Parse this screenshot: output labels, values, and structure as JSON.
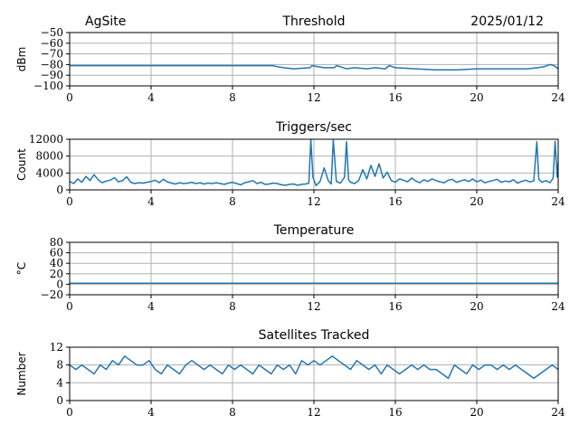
{
  "header": {
    "site": "AgSite",
    "date": "2025/01/12"
  },
  "chart_data": [
    {
      "type": "line",
      "title": "Threshold",
      "ylabel": "dBm",
      "xlim": [
        0,
        24
      ],
      "ylim": [
        -100,
        -50
      ],
      "xticks": [
        0,
        4,
        8,
        12,
        16,
        20,
        24
      ],
      "yticks": [
        -100,
        -90,
        -80,
        -70,
        -60,
        -50
      ],
      "ytick_labels": [
        "−100",
        "−90",
        "−80",
        "−70",
        "−60",
        "−50"
      ],
      "color": "#1f77b4",
      "x": [
        0,
        2,
        4,
        6,
        8,
        9,
        10,
        10.2,
        10.5,
        11,
        11.8,
        11.9,
        12.2,
        12.5,
        13,
        13.1,
        13.3,
        13.6,
        14,
        14.6,
        15,
        15.5,
        15.7,
        16,
        17,
        18,
        19,
        20,
        21,
        22,
        22.5,
        23,
        23.3,
        23.6,
        23.8,
        24
      ],
      "y": [
        -81,
        -81,
        -81,
        -81,
        -81,
        -81,
        -81,
        -82,
        -83,
        -84,
        -83,
        -81,
        -82,
        -83,
        -83,
        -81,
        -82,
        -84,
        -83,
        -84,
        -83,
        -84,
        -81,
        -83,
        -84,
        -85,
        -85,
        -84,
        -84,
        -84,
        -84,
        -83,
        -82,
        -80,
        -81,
        -84
      ]
    },
    {
      "type": "line",
      "title": "Triggers/sec",
      "ylabel": "Count",
      "xlim": [
        0,
        24
      ],
      "ylim": [
        0,
        12000
      ],
      "xticks": [
        0,
        4,
        8,
        12,
        16,
        20,
        24
      ],
      "yticks": [
        0,
        4000,
        8000,
        12000
      ],
      "ytick_labels": [
        "0",
        "4000",
        "8000",
        "12000"
      ],
      "color": "#1f77b4",
      "x": [
        0,
        0.2,
        0.4,
        0.6,
        0.8,
        1.0,
        1.2,
        1.4,
        1.6,
        1.8,
        2.0,
        2.2,
        2.4,
        2.6,
        2.8,
        3.0,
        3.2,
        3.4,
        3.6,
        3.8,
        4.0,
        4.2,
        4.4,
        4.6,
        4.8,
        5.0,
        5.2,
        5.4,
        5.6,
        5.8,
        6.0,
        6.2,
        6.4,
        6.6,
        6.8,
        7.0,
        7.2,
        7.4,
        7.6,
        7.8,
        8.0,
        8.2,
        8.4,
        8.6,
        8.8,
        9.0,
        9.2,
        9.4,
        9.6,
        9.8,
        10.0,
        10.2,
        10.4,
        10.6,
        10.8,
        11.0,
        11.2,
        11.4,
        11.6,
        11.75,
        11.85,
        11.95,
        12.1,
        12.3,
        12.5,
        12.7,
        12.85,
        12.95,
        13.1,
        13.3,
        13.5,
        13.6,
        13.7,
        13.8,
        14.0,
        14.2,
        14.4,
        14.6,
        14.8,
        15.0,
        15.2,
        15.4,
        15.6,
        15.8,
        16.0,
        16.2,
        16.4,
        16.6,
        16.8,
        17.0,
        17.2,
        17.4,
        17.6,
        17.8,
        18.0,
        18.2,
        18.4,
        18.6,
        18.8,
        19.0,
        19.2,
        19.4,
        19.6,
        19.8,
        20.0,
        20.2,
        20.4,
        20.6,
        20.8,
        21.0,
        21.2,
        21.4,
        21.6,
        21.8,
        22.0,
        22.2,
        22.4,
        22.6,
        22.8,
        22.95,
        23.05,
        23.2,
        23.4,
        23.6,
        23.75,
        23.85,
        23.95,
        24.0
      ],
      "y": [
        2000,
        1500,
        2600,
        1800,
        3200,
        2200,
        3600,
        2400,
        1700,
        2100,
        2300,
        2900,
        1900,
        2200,
        3100,
        1800,
        1500,
        1700,
        1600,
        1800,
        2000,
        2300,
        1700,
        2500,
        1900,
        1600,
        1400,
        1700,
        1500,
        1600,
        1800,
        1500,
        1700,
        1400,
        1600,
        1500,
        1700,
        1500,
        1300,
        1600,
        1800,
        1500,
        1200,
        1700,
        1900,
        2200,
        1500,
        1800,
        1300,
        1400,
        1600,
        1500,
        1200,
        1100,
        1300,
        1400,
        1100,
        1300,
        1400,
        1600,
        12000,
        3000,
        1000,
        2000,
        5200,
        2200,
        1400,
        11800,
        2000,
        1600,
        3000,
        11400,
        2400,
        1800,
        1500,
        2200,
        4800,
        2600,
        5800,
        3200,
        6200,
        2800,
        4200,
        2200,
        1800,
        2600,
        2300,
        1900,
        2800,
        2100,
        1700,
        2400,
        2000,
        2600,
        2200,
        1900,
        1700,
        2300,
        2500,
        1800,
        2100,
        2400,
        2000,
        2600,
        1900,
        2300,
        1700,
        2000,
        2200,
        2500,
        1800,
        2100,
        1900,
        2400,
        1600,
        2000,
        2300,
        1900,
        2100,
        11400,
        2500,
        1800,
        2200,
        1700,
        2800,
        11500,
        3000,
        6500
      ]
    },
    {
      "type": "line",
      "title": "Temperature",
      "ylabel": "°C",
      "xlim": [
        0,
        24
      ],
      "ylim": [
        -20,
        80
      ],
      "xticks": [
        0,
        4,
        8,
        12,
        16,
        20,
        24
      ],
      "yticks": [
        -20,
        0,
        20,
        40,
        60,
        80
      ],
      "ytick_labels": [
        "−20",
        "0",
        "20",
        "40",
        "60",
        "80"
      ],
      "color": "#1f77b4",
      "x": [
        0,
        24
      ],
      "y": [
        2,
        2
      ]
    },
    {
      "type": "line",
      "title": "Satellites Tracked",
      "ylabel": "Number",
      "xlim": [
        0,
        24
      ],
      "ylim": [
        0,
        12
      ],
      "xticks": [
        0,
        4,
        8,
        12,
        16,
        20,
        24
      ],
      "yticks": [
        0,
        4,
        8,
        12
      ],
      "ytick_labels": [
        "0",
        "4",
        "8",
        "12"
      ],
      "color": "#1f77b4",
      "x": [
        0,
        0.3,
        0.6,
        0.9,
        1.2,
        1.5,
        1.8,
        2.1,
        2.4,
        2.7,
        3.0,
        3.3,
        3.6,
        3.9,
        4.2,
        4.5,
        4.8,
        5.1,
        5.4,
        5.7,
        6.0,
        6.3,
        6.6,
        6.9,
        7.2,
        7.5,
        7.8,
        8.1,
        8.4,
        8.7,
        9.0,
        9.3,
        9.6,
        9.9,
        10.2,
        10.5,
        10.8,
        11.1,
        11.4,
        11.7,
        12.0,
        12.3,
        12.6,
        12.9,
        13.2,
        13.5,
        13.8,
        14.1,
        14.4,
        14.7,
        15.0,
        15.3,
        15.6,
        15.9,
        16.2,
        16.5,
        16.8,
        17.1,
        17.4,
        17.7,
        18.0,
        18.3,
        18.6,
        18.9,
        19.2,
        19.5,
        19.8,
        20.1,
        20.4,
        20.7,
        21.0,
        21.3,
        21.6,
        21.9,
        22.2,
        22.5,
        22.8,
        23.1,
        23.4,
        23.7,
        24.0
      ],
      "y": [
        8,
        7,
        8,
        7,
        6,
        8,
        7,
        9,
        8,
        10,
        9,
        8,
        8,
        9,
        7,
        6,
        8,
        7,
        6,
        8,
        9,
        8,
        7,
        8,
        7,
        6,
        8,
        7,
        8,
        7,
        6,
        8,
        7,
        6,
        8,
        7,
        8,
        6,
        9,
        8,
        9,
        8,
        9,
        10,
        9,
        8,
        7,
        9,
        8,
        7,
        8,
        6,
        8,
        7,
        6,
        7,
        8,
        7,
        8,
        7,
        7,
        6,
        5,
        8,
        7,
        6,
        8,
        7,
        8,
        8,
        7,
        8,
        7,
        8,
        7,
        6,
        5,
        6,
        7,
        8,
        7
      ]
    }
  ]
}
